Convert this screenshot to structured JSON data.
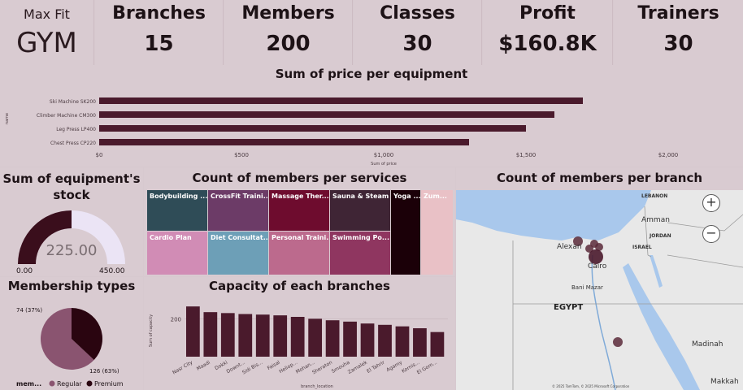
{
  "logo": {
    "line1": "Max Fit",
    "line2": "GYM"
  },
  "kpis": [
    {
      "label": "Branches",
      "value": "15"
    },
    {
      "label": "Members",
      "value": "200"
    },
    {
      "label": "Classes",
      "value": "30"
    },
    {
      "label": "Profit",
      "value": "$160.8K"
    },
    {
      "label": "Trainers",
      "value": "30"
    }
  ],
  "equipment_chart": {
    "title": "Sum of price per equipment",
    "ylabel": "name",
    "xlabel": "Sum of price",
    "ticks": [
      "$0",
      "$500",
      "$1,000",
      "$1,500",
      "$2,000"
    ]
  },
  "stock_gauge": {
    "title": "Sum of equipment's stock",
    "value_label": "225.00",
    "min_label": "0.00",
    "max_label": "450.00",
    "value": 225,
    "max": 450
  },
  "treemap": {
    "title": "Count of members per services",
    "cells": [
      {
        "label": "Bodybuilding ..."
      },
      {
        "label": "CrossFit Traini..."
      },
      {
        "label": "Massage Ther..."
      },
      {
        "label": "Sauna & Steam"
      },
      {
        "label": "Yoga ..."
      },
      {
        "label": "Zum..."
      },
      {
        "label": "Cardio Plan"
      },
      {
        "label": "Diet Consultat..."
      },
      {
        "label": "Personal Traini..."
      },
      {
        "label": "Swimming Po..."
      }
    ]
  },
  "membership": {
    "title": "Membership types",
    "label_premium": "74 (37%)",
    "label_regular": "126 (63%)",
    "legend_title": "mem...",
    "legend": [
      "Regular",
      "Premium"
    ]
  },
  "capacity_chart": {
    "title": "Capacity of each branches",
    "ylabel": "Sum of capacity",
    "xlabel": "branch_location",
    "ytick": "200"
  },
  "map": {
    "title": "Count of members per branch",
    "labels": {
      "lebanon": "LEBANON",
      "amman": "Amman",
      "jordan": "JORDAN",
      "israel": "ISRAEL",
      "alexandria": "Alexan",
      "cairo": "Cairo",
      "beni": "Bani Mazar",
      "egypt": "EGYPT",
      "madinah": "Madinah",
      "makkah": "Makkah"
    },
    "zoom_in": "+",
    "zoom_out": "−",
    "attribution": "© 2025 TomTom, © 2025 Microsoft Corporation"
  },
  "chart_data": [
    {
      "type": "bar",
      "title": "Sum of price per equipment",
      "categories": [
        "Ski Machine SK200",
        "Climber Machine CM300",
        "Leg Press LP400",
        "Chest Press CP220"
      ],
      "values": [
        1700,
        1600,
        1500,
        1300
      ],
      "xlabel": "Sum of price",
      "ylabel": "name",
      "xlim": [
        0,
        2100
      ]
    },
    {
      "type": "pie",
      "title": "Membership types",
      "categories": [
        "Regular",
        "Premium"
      ],
      "values": [
        126,
        74
      ]
    },
    {
      "type": "bar",
      "title": "Capacity of each branches",
      "categories": [
        "Nasr City",
        "Maadi",
        "Dokki",
        "Downt...",
        "Sidi Bis...",
        "Faisal",
        "Heliop...",
        "Mohan...",
        "Sheraton",
        "Smouha",
        "Zamalek",
        "El Tahrir",
        "Agamy",
        "Kornis...",
        "El Gom..."
      ],
      "values": [
        265,
        235,
        230,
        225,
        222,
        218,
        210,
        200,
        192,
        185,
        175,
        168,
        160,
        150,
        130
      ],
      "xlabel": "branch_location",
      "ylabel": "Sum of capacity",
      "ylim": [
        0,
        300
      ]
    }
  ]
}
